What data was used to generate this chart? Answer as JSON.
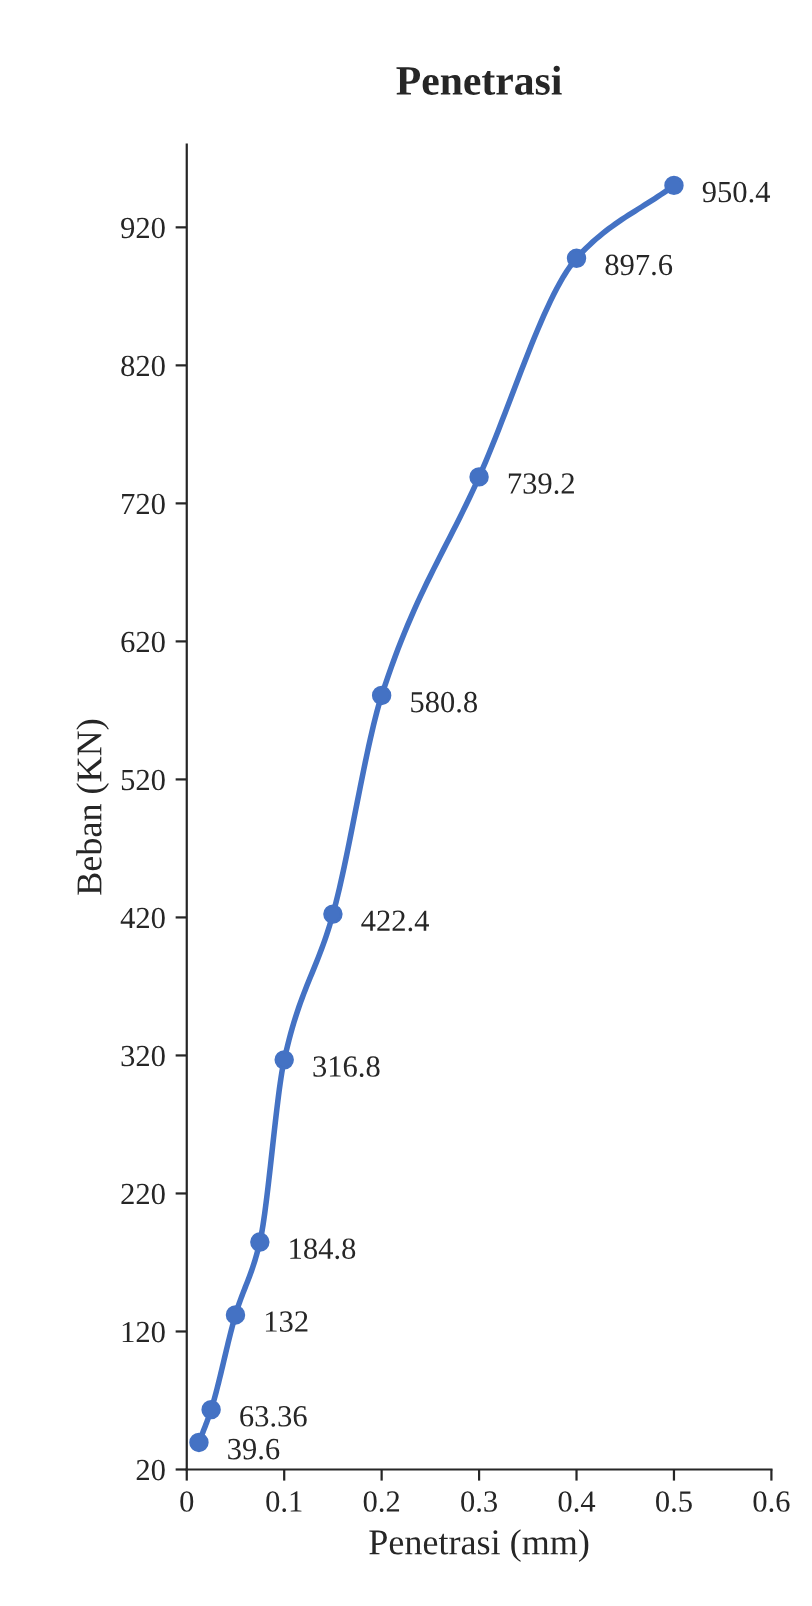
{
  "chart_data": {
    "type": "line",
    "title": "Penetrasi",
    "xlabel": "Penetrasi (mm)",
    "ylabel": "Beban (KN)",
    "x": [
      0.0125,
      0.025,
      0.05,
      0.075,
      0.1,
      0.15,
      0.2,
      0.3,
      0.4,
      0.5
    ],
    "series": [
      {
        "color": "#4472c4",
        "values": [
          39.6,
          63.36,
          132,
          184.8,
          316.8,
          422.4,
          580.8,
          739.2,
          897.6,
          950.4
        ]
      }
    ],
    "xlim": [
      0,
      0.6
    ],
    "xticks": [
      0,
      0.1,
      0.2,
      0.3,
      0.4,
      0.5,
      0.6
    ],
    "ylim": [
      20,
      980
    ],
    "yticks": [
      20,
      120,
      220,
      320,
      420,
      520,
      620,
      720,
      820,
      920
    ],
    "marker": "circle",
    "line_style": "solid",
    "data_labels": true,
    "grid": false
  }
}
